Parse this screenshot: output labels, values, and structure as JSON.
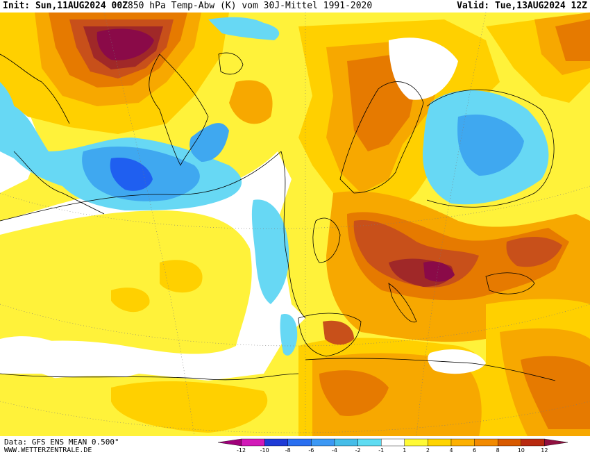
{
  "header": {
    "init": "Init: Sun,11AUG2024 00Z",
    "title": "850 hPa Temp-Abw (K) vom 30J-Mittel 1991-2020",
    "valid": "Valid: Tue,13AUG2024 12Z"
  },
  "footer": {
    "data_source": "Data: GFS ENS MEAN 0.500°",
    "website": "WWW.WETTERZENTRALE.DE"
  },
  "legend": {
    "ticks": [
      "-12",
      "-10",
      "-8",
      "-6",
      "-4",
      "-2",
      "-1",
      "1",
      "2",
      "4",
      "6",
      "8",
      "10",
      "12"
    ],
    "colors": [
      "#a0007a",
      "#d21ab8",
      "#1f3bd6",
      "#2a6ff0",
      "#3c98f4",
      "#46bde8",
      "#5fdcf2",
      "#ffffff",
      "#fffa36",
      "#ffd400",
      "#fdb000",
      "#f28a00",
      "#d85a00",
      "#b82a10",
      "#901040"
    ]
  },
  "map": {
    "field": "850 hPa temperature anomaly (K)",
    "colors": {
      "cold_strong": "#1f5ff0",
      "cold": "#3fa8f0",
      "cold_light": "#67d8f4",
      "neutral": "#ffffff",
      "warm_light": "#fff23a",
      "warm": "#ffd000",
      "warm_mid": "#f7a800",
      "warm_strong": "#e67a00",
      "hot": "#c8501a",
      "hot_strong": "#a02828",
      "extreme": "#8a0a48",
      "coastline": "#000000"
    }
  }
}
